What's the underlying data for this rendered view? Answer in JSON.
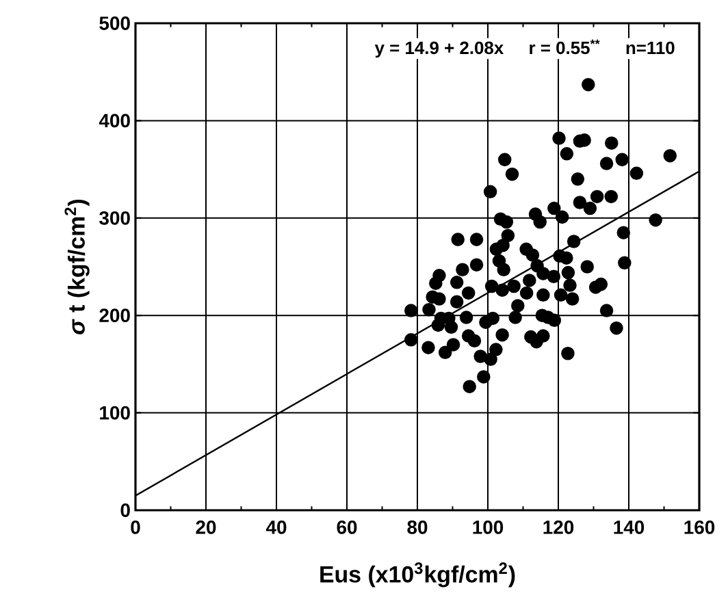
{
  "chart_data": {
    "type": "scatter",
    "xlabel": "Eus (x10$^{3}$kgf/cm$^{2}$)",
    "ylabel": "*σ* t (kgf/cm$^{2}$)",
    "annotations": [
      "y = 14.9 + 2.08x",
      "r = 0.55$^{**}$",
      "n=110"
    ],
    "xlim": [
      0,
      160
    ],
    "xticks": [
      0,
      20,
      40,
      60,
      80,
      100,
      120,
      140,
      160
    ],
    "ylim": [
      0,
      500
    ],
    "yticks": [
      0,
      100,
      200,
      300,
      400,
      500
    ],
    "grid": true,
    "series": [
      {
        "color": "#000000",
        "marker": "circle",
        "x": [
          128.5,
          120.2,
          122.4,
          126.1,
          127.4,
          135.1,
          104.8,
          106.9,
          133.7,
          138.1,
          142.2,
          151.7,
          125.5,
          100.7,
          131,
          135,
          126.1,
          129,
          113.5,
          114.8,
          118.8,
          121.1,
          103.6,
          105.3,
          147.6,
          138.5,
          105.7,
          91.5,
          96.8,
          124.4,
          104.3,
          102.4,
          110.9,
          112.7,
          120.4,
          122.3,
          103.2,
          96.8,
          138.8,
          128.2,
          92.8,
          104.5,
          114,
          115.7,
          118.7,
          122.8,
          86.2,
          85.2,
          91.2,
          101.1,
          104.1,
          107.4,
          111.8,
          111,
          123.3,
          130.6,
          132.1,
          84.3,
          86.2,
          91.2,
          94.5,
          115.7,
          120.7,
          124,
          108.5,
          78.2,
          83.3,
          133.7,
          93.9,
          99.4,
          101.4,
          107.8,
          115.4,
          117.1,
          118.9,
          86.7,
          89.6,
          85.9,
          88.9,
          136.5,
          78.2,
          83.1,
          94.5,
          96.2,
          104.1,
          112.2,
          113.8,
          115.7,
          90.2,
          87.9,
          97.9,
          100.8,
          102.3,
          122.7,
          94.8,
          98.8
        ],
        "values": [
          437,
          382,
          366,
          379,
          380,
          377,
          360,
          345,
          356,
          360,
          346,
          364,
          340,
          327,
          322,
          322,
          316,
          310,
          304,
          296,
          310,
          301,
          299,
          296,
          298,
          285,
          282,
          278,
          278,
          276,
          272,
          268,
          268,
          262,
          261,
          259,
          256,
          252,
          254,
          250,
          247,
          247,
          251,
          243,
          240,
          244,
          241,
          233,
          234,
          230,
          226,
          230,
          236,
          223,
          231,
          229,
          232,
          219,
          217,
          214,
          223,
          221,
          221,
          217,
          210,
          205,
          206,
          205,
          198,
          193,
          197,
          198,
          200,
          198,
          195,
          197,
          188,
          190,
          197,
          187,
          175,
          167,
          179,
          174,
          180,
          178,
          173,
          179,
          170,
          162,
          158,
          155,
          165,
          161,
          127,
          137
        ]
      },
      {
        "type": "line",
        "color": "#000000",
        "x": [
          0,
          160
        ],
        "values": [
          15,
          348
        ]
      }
    ]
  }
}
